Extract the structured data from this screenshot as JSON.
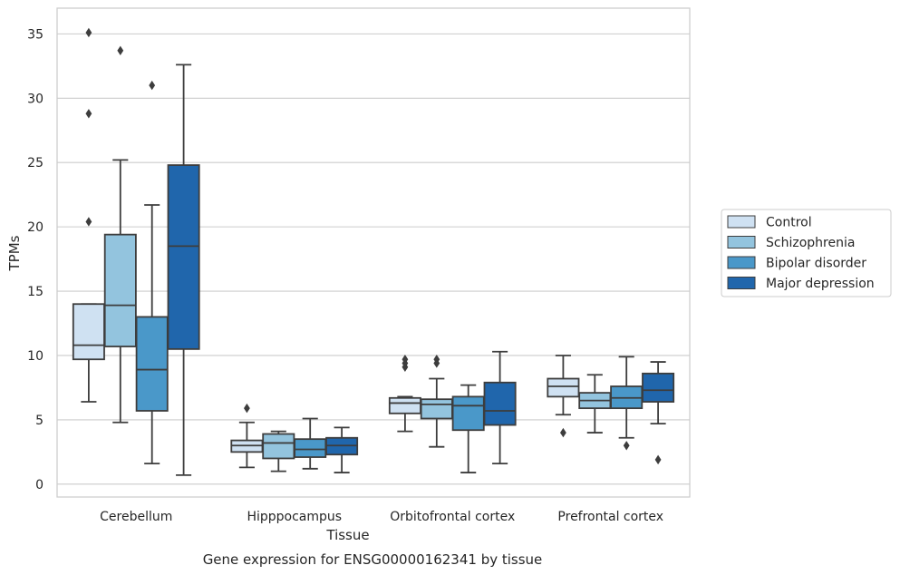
{
  "caption": "Gene expression for ENSG00000162341 by tissue",
  "chart_data": {
    "type": "box",
    "xlabel": "Tissue",
    "ylabel": "TPMs",
    "ylim": [
      -1,
      37
    ],
    "yticks": [
      0,
      5,
      10,
      15,
      20,
      25,
      30,
      35
    ],
    "grid": "horizontal",
    "legend_position": "right",
    "categories": [
      "Cerebellum",
      "Hipppocampus",
      "Orbitofrontal cortex",
      "Prefrontal cortex"
    ],
    "series": [
      {
        "name": "Control",
        "color": "#cfe1f2",
        "boxes": [
          {
            "whislo": 6.4,
            "q1": 9.7,
            "med": 10.8,
            "q3": 14.0,
            "whishi": 14.0,
            "fliers": [
              20.4,
              28.8,
              35.1
            ]
          },
          {
            "whislo": 1.3,
            "q1": 2.5,
            "med": 3.0,
            "q3": 3.4,
            "whishi": 4.8,
            "fliers": [
              5.9
            ]
          },
          {
            "whislo": 4.1,
            "q1": 5.5,
            "med": 6.3,
            "q3": 6.7,
            "whishi": 6.8,
            "fliers": [
              9.1,
              9.4,
              9.7
            ]
          },
          {
            "whislo": 5.4,
            "q1": 6.8,
            "med": 7.6,
            "q3": 8.2,
            "whishi": 10.0,
            "fliers": [
              4.0
            ]
          }
        ]
      },
      {
        "name": "Schizophrenia",
        "color": "#93c4de",
        "boxes": [
          {
            "whislo": 4.8,
            "q1": 10.7,
            "med": 13.9,
            "q3": 19.4,
            "whishi": 25.2,
            "fliers": [
              33.7
            ]
          },
          {
            "whislo": 1.0,
            "q1": 2.0,
            "med": 3.2,
            "q3": 3.9,
            "whishi": 4.1,
            "fliers": []
          },
          {
            "whislo": 2.9,
            "q1": 5.1,
            "med": 6.2,
            "q3": 6.6,
            "whishi": 8.2,
            "fliers": [
              9.4,
              9.7
            ]
          },
          {
            "whislo": 4.0,
            "q1": 5.9,
            "med": 6.5,
            "q3": 7.1,
            "whishi": 8.5,
            "fliers": []
          }
        ]
      },
      {
        "name": "Bipolar disorder",
        "color": "#4a98c9",
        "boxes": [
          {
            "whislo": 1.6,
            "q1": 5.7,
            "med": 8.9,
            "q3": 13.0,
            "whishi": 21.7,
            "fliers": [
              31.0
            ]
          },
          {
            "whislo": 1.2,
            "q1": 2.1,
            "med": 2.7,
            "q3": 3.5,
            "whishi": 5.1,
            "fliers": []
          },
          {
            "whislo": 0.9,
            "q1": 4.2,
            "med": 6.1,
            "q3": 6.8,
            "whishi": 7.7,
            "fliers": []
          },
          {
            "whislo": 3.6,
            "q1": 5.9,
            "med": 6.7,
            "q3": 7.6,
            "whishi": 9.9,
            "fliers": [
              3.0
            ]
          }
        ]
      },
      {
        "name": "Major depression",
        "color": "#2066ac",
        "boxes": [
          {
            "whislo": 0.7,
            "q1": 10.5,
            "med": 18.5,
            "q3": 24.8,
            "whishi": 32.6,
            "fliers": []
          },
          {
            "whislo": 0.9,
            "q1": 2.3,
            "med": 3.0,
            "q3": 3.6,
            "whishi": 4.4,
            "fliers": []
          },
          {
            "whislo": 1.6,
            "q1": 4.6,
            "med": 5.7,
            "q3": 7.9,
            "whishi": 10.3,
            "fliers": []
          },
          {
            "whislo": 4.7,
            "q1": 6.4,
            "med": 7.3,
            "q3": 8.6,
            "whishi": 9.5,
            "fliers": [
              1.9
            ]
          }
        ]
      }
    ]
  }
}
